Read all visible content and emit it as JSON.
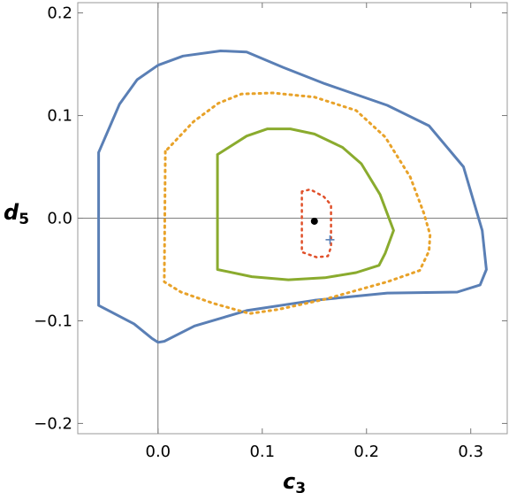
{
  "chart_data": {
    "type": "line",
    "xlabel": {
      "base": "c",
      "sub": "3"
    },
    "ylabel": {
      "base": "d",
      "sub": "5"
    },
    "xlim": [
      -0.077,
      0.335
    ],
    "ylim": [
      -0.21,
      0.21
    ],
    "x_ticks": [
      0.0,
      0.1,
      0.2,
      0.3
    ],
    "x_tick_labels": [
      "0.0",
      "0.1",
      "0.2",
      "0.3"
    ],
    "y_ticks": [
      -0.2,
      -0.1,
      0.0,
      0.1,
      0.2
    ],
    "y_tick_labels": [
      "−0.2",
      "−0.1",
      "0.0",
      "0.1",
      "0.2"
    ],
    "frame": true,
    "zero_axes": true,
    "grid": false,
    "legend": "none",
    "series": [
      {
        "style": "solid",
        "color": "#5a7fb5",
        "width": 3,
        "points": [
          [
            -0.057,
            0.064
          ],
          [
            -0.057,
            -0.085
          ],
          [
            -0.023,
            -0.103
          ],
          [
            -0.006,
            -0.117
          ],
          [
            0.0,
            -0.121
          ],
          [
            0.006,
            -0.12
          ],
          [
            0.035,
            -0.105
          ],
          [
            0.085,
            -0.09
          ],
          [
            0.15,
            -0.08
          ],
          [
            0.22,
            -0.073
          ],
          [
            0.287,
            -0.072
          ],
          [
            0.309,
            -0.065
          ],
          [
            0.315,
            -0.05
          ],
          [
            0.311,
            -0.012
          ],
          [
            0.293,
            0.05
          ],
          [
            0.26,
            0.09
          ],
          [
            0.22,
            0.11
          ],
          [
            0.16,
            0.131
          ],
          [
            0.12,
            0.147
          ],
          [
            0.085,
            0.162
          ],
          [
            0.06,
            0.163
          ],
          [
            0.024,
            0.158
          ],
          [
            0.0,
            0.149
          ],
          [
            -0.02,
            0.135
          ],
          [
            -0.037,
            0.111
          ],
          [
            -0.057,
            0.064
          ]
        ]
      },
      {
        "style": "dotted",
        "color": "#e8a229",
        "width": 3,
        "points": [
          [
            0.007,
            0.065
          ],
          [
            0.006,
            -0.062
          ],
          [
            0.022,
            -0.072
          ],
          [
            0.053,
            -0.083
          ],
          [
            0.088,
            -0.093
          ],
          [
            0.115,
            -0.089
          ],
          [
            0.16,
            -0.079
          ],
          [
            0.22,
            -0.062
          ],
          [
            0.251,
            -0.051
          ],
          [
            0.26,
            -0.032
          ],
          [
            0.261,
            -0.016
          ],
          [
            0.255,
            0.005
          ],
          [
            0.242,
            0.04
          ],
          [
            0.218,
            0.079
          ],
          [
            0.19,
            0.105
          ],
          [
            0.15,
            0.118
          ],
          [
            0.11,
            0.122
          ],
          [
            0.08,
            0.121
          ],
          [
            0.058,
            0.112
          ],
          [
            0.034,
            0.094
          ],
          [
            0.007,
            0.065
          ]
        ]
      },
      {
        "style": "solid",
        "color": "#8aab2e",
        "width": 3,
        "points": [
          [
            0.057,
            0.062
          ],
          [
            0.057,
            -0.05
          ],
          [
            0.09,
            -0.057
          ],
          [
            0.125,
            -0.06
          ],
          [
            0.16,
            -0.058
          ],
          [
            0.19,
            -0.053
          ],
          [
            0.212,
            -0.046
          ],
          [
            0.218,
            -0.034
          ],
          [
            0.226,
            -0.012
          ],
          [
            0.213,
            0.023
          ],
          [
            0.195,
            0.053
          ],
          [
            0.177,
            0.069
          ],
          [
            0.15,
            0.082
          ],
          [
            0.127,
            0.087
          ],
          [
            0.105,
            0.087
          ],
          [
            0.085,
            0.08
          ],
          [
            0.057,
            0.062
          ]
        ]
      },
      {
        "style": "dotted",
        "color": "#e0502a",
        "width": 2.5,
        "points": [
          [
            0.138,
            0.026
          ],
          [
            0.138,
            -0.033
          ],
          [
            0.152,
            -0.038
          ],
          [
            0.163,
            -0.037
          ],
          [
            0.166,
            -0.028
          ],
          [
            0.166,
            0.013
          ],
          [
            0.159,
            0.021
          ],
          [
            0.146,
            0.028
          ],
          [
            0.138,
            0.026
          ]
        ]
      }
    ],
    "markers": [
      {
        "shape": "dot",
        "color": "#000000",
        "x": 0.15,
        "y": -0.003
      },
      {
        "shape": "plus",
        "color": "#5a7fb5",
        "x": 0.165,
        "y": -0.021
      }
    ]
  }
}
